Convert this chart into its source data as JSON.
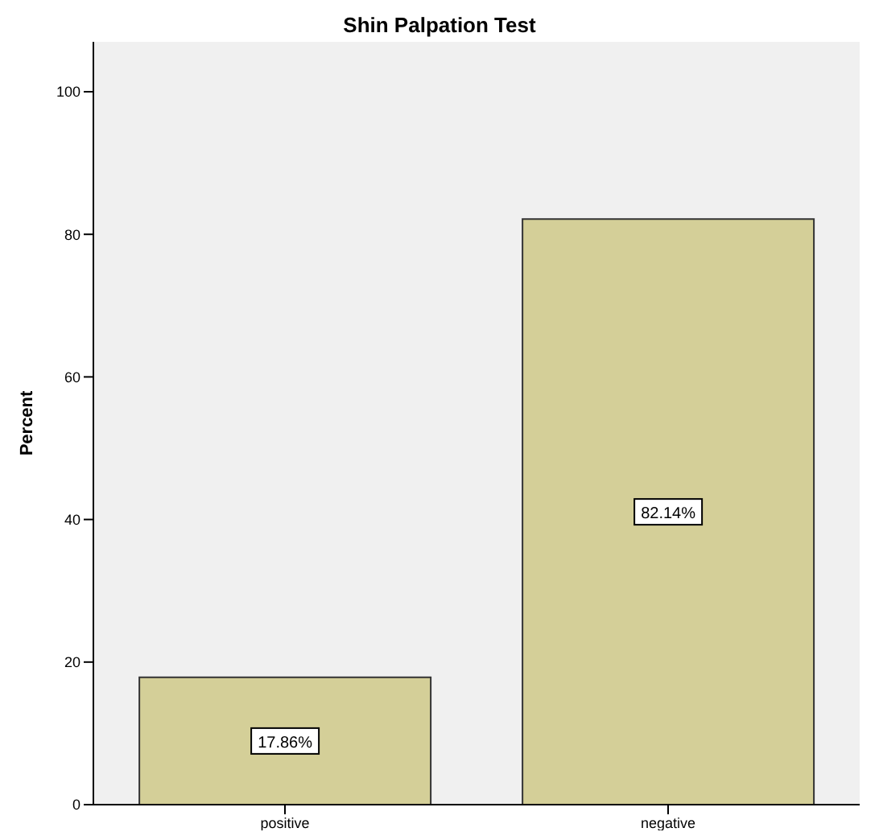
{
  "chart_data": {
    "type": "bar",
    "title": "Shin Palpation Test",
    "ylabel": "Percent",
    "categories": [
      "positive",
      "negative"
    ],
    "values": [
      17.86,
      82.14
    ],
    "value_labels": [
      "17.86%",
      "82.14%"
    ],
    "color": "#d4cf98",
    "ylim": [
      0,
      107
    ],
    "yticks": [
      0,
      20,
      40,
      60,
      80,
      100
    ],
    "grid": false,
    "legend": false
  }
}
